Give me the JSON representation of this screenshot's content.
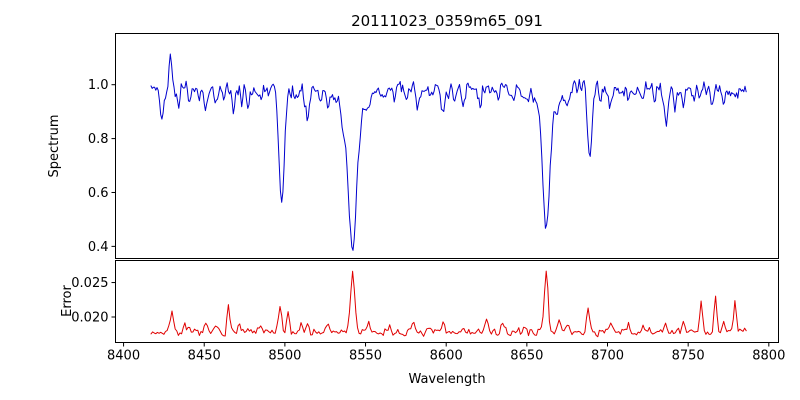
{
  "figure": {
    "title": "20111023_0359m65_091",
    "xlabel": "Wavelength",
    "background_color": "#ffffff",
    "spine_color": "#000000"
  },
  "axis": {
    "xlim": [
      8395,
      8806
    ],
    "xticks": [
      {
        "v": 8400,
        "label": "8400"
      },
      {
        "v": 8450,
        "label": "8450"
      },
      {
        "v": 8500,
        "label": "8500"
      },
      {
        "v": 8550,
        "label": "8550"
      },
      {
        "v": 8600,
        "label": "8600"
      },
      {
        "v": 8650,
        "label": "8650"
      },
      {
        "v": 8700,
        "label": "8700"
      },
      {
        "v": 8750,
        "label": "8750"
      },
      {
        "v": 8800,
        "label": "8800"
      }
    ]
  },
  "chart_data": [
    {
      "type": "line",
      "name": "spectrum",
      "ylabel": "Spectrum",
      "color": "#0000cd",
      "x_range": [
        8417,
        8786
      ],
      "step": 0.75,
      "ylim": [
        0.355,
        1.19
      ],
      "yticks": [
        {
          "v": 0.4,
          "label": "0.4"
        },
        {
          "v": 0.6,
          "label": "0.6"
        },
        {
          "v": 0.8,
          "label": "0.8"
        },
        {
          "v": 1.0,
          "label": "1.0"
        }
      ],
      "continuum": 0.985,
      "noise_sigma": 0.013,
      "smooth": 0.45,
      "seed": 42,
      "features": [
        {
          "center": 8424,
          "depth": 0.1,
          "width": 1.0
        },
        {
          "center": 8429,
          "depth": -0.15,
          "width": 0.7
        },
        {
          "center": 8434,
          "depth": 0.07,
          "width": 0.8
        },
        {
          "center": 8441,
          "depth": 0.05,
          "width": 0.8
        },
        {
          "center": 8447,
          "depth": 0.04,
          "width": 0.7
        },
        {
          "center": 8451,
          "depth": 0.07,
          "width": 0.9
        },
        {
          "center": 8457,
          "depth": 0.04,
          "width": 0.7
        },
        {
          "center": 8462,
          "depth": 0.05,
          "width": 0.8
        },
        {
          "center": 8468,
          "depth": 0.1,
          "width": 1.0
        },
        {
          "center": 8473,
          "depth": 0.04,
          "width": 0.7
        },
        {
          "center": 8477,
          "depth": 0.06,
          "width": 0.8
        },
        {
          "center": 8484,
          "depth": 0.05,
          "width": 0.8
        },
        {
          "center": 8490,
          "depth": 0.04,
          "width": 0.7
        },
        {
          "center": 8498,
          "depth": 0.43,
          "width": 1.7
        },
        {
          "center": 8507,
          "depth": 0.05,
          "width": 0.8
        },
        {
          "center": 8514,
          "depth": 0.12,
          "width": 1.1
        },
        {
          "center": 8522,
          "depth": 0.05,
          "width": 0.8
        },
        {
          "center": 8527,
          "depth": 0.06,
          "width": 0.9
        },
        {
          "center": 8536,
          "depth": 0.05,
          "width": 1.0
        },
        {
          "center": 8542,
          "depth": 0.5,
          "width": 2.6
        },
        {
          "center": 8542,
          "depth": 0.1,
          "width": 7.0
        },
        {
          "center": 8552,
          "depth": 0.05,
          "width": 0.9
        },
        {
          "center": 8560,
          "depth": 0.04,
          "width": 0.8
        },
        {
          "center": 8568,
          "depth": 0.04,
          "width": 0.8
        },
        {
          "center": 8575,
          "depth": 0.05,
          "width": 0.8
        },
        {
          "center": 8582,
          "depth": 0.06,
          "width": 0.9
        },
        {
          "center": 8590,
          "depth": 0.04,
          "width": 0.8
        },
        {
          "center": 8598,
          "depth": 0.1,
          "width": 1.1
        },
        {
          "center": 8605,
          "depth": 0.04,
          "width": 0.7
        },
        {
          "center": 8611,
          "depth": 0.05,
          "width": 0.9
        },
        {
          "center": 8621,
          "depth": 0.07,
          "width": 0.9
        },
        {
          "center": 8632,
          "depth": 0.05,
          "width": 0.8
        },
        {
          "center": 8642,
          "depth": 0.04,
          "width": 0.8
        },
        {
          "center": 8648,
          "depth": 0.06,
          "width": 0.9
        },
        {
          "center": 8662,
          "depth": 0.43,
          "width": 2.1
        },
        {
          "center": 8662,
          "depth": 0.09,
          "width": 6.0
        },
        {
          "center": 8669,
          "depth": 0.05,
          "width": 0.8
        },
        {
          "center": 8675,
          "depth": 0.07,
          "width": 0.9
        },
        {
          "center": 8689,
          "depth": 0.24,
          "width": 1.4
        },
        {
          "center": 8696,
          "depth": 0.05,
          "width": 0.8
        },
        {
          "center": 8702,
          "depth": 0.06,
          "width": 0.9
        },
        {
          "center": 8713,
          "depth": 0.05,
          "width": 0.8
        },
        {
          "center": 8722,
          "depth": 0.05,
          "width": 0.8
        },
        {
          "center": 8729,
          "depth": 0.04,
          "width": 0.7
        },
        {
          "center": 8736,
          "depth": 0.12,
          "width": 1.1
        },
        {
          "center": 8742,
          "depth": 0.05,
          "width": 0.8
        },
        {
          "center": 8747,
          "depth": 0.07,
          "width": 0.9
        },
        {
          "center": 8753,
          "depth": 0.04,
          "width": 0.7
        },
        {
          "center": 8757,
          "depth": 0.05,
          "width": 0.8
        },
        {
          "center": 8765,
          "depth": 0.05,
          "width": 0.8
        },
        {
          "center": 8772,
          "depth": 0.06,
          "width": 0.9
        },
        {
          "center": 8779,
          "depth": 0.04,
          "width": 0.8
        }
      ]
    },
    {
      "type": "line",
      "name": "error",
      "ylabel": "Error",
      "color": "#e00000",
      "x_range": [
        8417,
        8786
      ],
      "step": 1.0,
      "ylim": [
        0.0163,
        0.0282
      ],
      "yticks": [
        {
          "v": 0.02,
          "label": "0.020"
        },
        {
          "v": 0.025,
          "label": "0.025"
        }
      ],
      "baseline": 0.0178,
      "noise_sigma": 0.00028,
      "smooth": 0.15,
      "seed": 7,
      "features": [
        {
          "center": 8430,
          "height": 0.0035,
          "width": 0.9
        },
        {
          "center": 8438,
          "height": 0.0008,
          "width": 0.8
        },
        {
          "center": 8451,
          "height": 0.001,
          "width": 0.8
        },
        {
          "center": 8458,
          "height": 0.0008,
          "width": 0.8
        },
        {
          "center": 8465,
          "height": 0.0042,
          "width": 0.8
        },
        {
          "center": 8472,
          "height": 0.001,
          "width": 0.8
        },
        {
          "center": 8484,
          "height": 0.0008,
          "width": 0.8
        },
        {
          "center": 8497,
          "height": 0.0032,
          "width": 1.0
        },
        {
          "center": 8502,
          "height": 0.0028,
          "width": 0.9
        },
        {
          "center": 8510,
          "height": 0.0012,
          "width": 0.8
        },
        {
          "center": 8514,
          "height": 0.0015,
          "width": 0.8
        },
        {
          "center": 8527,
          "height": 0.001,
          "width": 0.8
        },
        {
          "center": 8542,
          "height": 0.0088,
          "width": 1.3
        },
        {
          "center": 8552,
          "height": 0.001,
          "width": 0.8
        },
        {
          "center": 8565,
          "height": 0.0008,
          "width": 0.8
        },
        {
          "center": 8580,
          "height": 0.0012,
          "width": 0.8
        },
        {
          "center": 8598,
          "height": 0.0012,
          "width": 0.8
        },
        {
          "center": 8611,
          "height": 0.0008,
          "width": 0.8
        },
        {
          "center": 8625,
          "height": 0.0018,
          "width": 0.9
        },
        {
          "center": 8635,
          "height": 0.001,
          "width": 0.8
        },
        {
          "center": 8648,
          "height": 0.001,
          "width": 0.8
        },
        {
          "center": 8662,
          "height": 0.0092,
          "width": 1.2
        },
        {
          "center": 8670,
          "height": 0.0015,
          "width": 0.8
        },
        {
          "center": 8675,
          "height": 0.0012,
          "width": 0.8
        },
        {
          "center": 8688,
          "height": 0.0035,
          "width": 0.9
        },
        {
          "center": 8702,
          "height": 0.0012,
          "width": 0.8
        },
        {
          "center": 8713,
          "height": 0.001,
          "width": 0.8
        },
        {
          "center": 8722,
          "height": 0.0008,
          "width": 0.8
        },
        {
          "center": 8736,
          "height": 0.0015,
          "width": 0.8
        },
        {
          "center": 8747,
          "height": 0.0012,
          "width": 0.8
        },
        {
          "center": 8758,
          "height": 0.0042,
          "width": 0.9
        },
        {
          "center": 8767,
          "height": 0.005,
          "width": 0.9
        },
        {
          "center": 8772,
          "height": 0.0015,
          "width": 0.8
        },
        {
          "center": 8779,
          "height": 0.0042,
          "width": 0.9
        }
      ]
    }
  ]
}
